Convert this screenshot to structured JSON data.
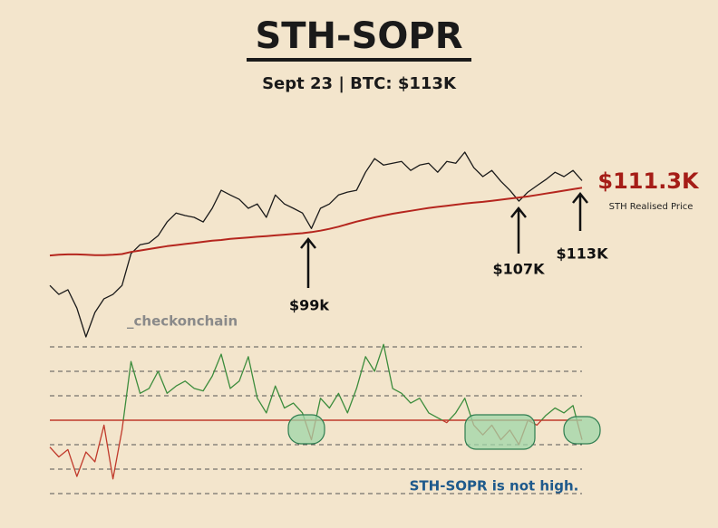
{
  "chart_data": [
    {
      "type": "line",
      "title": "STH-SOPR",
      "subtitle": "Sept 23 | BTC: $113K",
      "watermark": "_checkonchain",
      "ylim": [
        67.6,
        122.9
      ],
      "series": [
        {
          "color": "#1a1a1a",
          "values": [
            83.9,
            81.4,
            82.7,
            77.6,
            69.6,
            76.4,
            80.2,
            81.4,
            83.9,
            92.7,
            95.2,
            95.7,
            97.7,
            101.5,
            104.0,
            103.3,
            102.8,
            101.5,
            105.3,
            110.3,
            109.0,
            107.8,
            105.3,
            106.5,
            102.8,
            109.0,
            106.5,
            105.3,
            104.0,
            99.7,
            105.3,
            106.5,
            109.0,
            109.8,
            110.3,
            115.3,
            119.1,
            117.3,
            117.8,
            118.3,
            115.8,
            117.3,
            117.8,
            115.3,
            118.3,
            117.8,
            120.9,
            116.6,
            114.1,
            115.8,
            112.8,
            110.3,
            107.3,
            109.8,
            111.6,
            113.3,
            115.3,
            114.1,
            115.8,
            113.0
          ]
        },
        {
          "name": "STH Realised Price",
          "color": "#b5261e",
          "values": [
            92.2,
            92.4,
            92.5,
            92.5,
            92.4,
            92.3,
            92.3,
            92.4,
            92.6,
            93.2,
            93.6,
            94.0,
            94.4,
            94.8,
            95.1,
            95.4,
            95.7,
            96.0,
            96.3,
            96.5,
            96.8,
            97.0,
            97.2,
            97.4,
            97.6,
            97.8,
            98.0,
            98.2,
            98.4,
            98.7,
            99.1,
            99.6,
            100.2,
            100.9,
            101.6,
            102.2,
            102.8,
            103.3,
            103.8,
            104.2,
            104.6,
            105.0,
            105.4,
            105.7,
            106.0,
            106.3,
            106.6,
            106.9,
            107.1,
            107.4,
            107.7,
            108.0,
            108.3,
            108.6,
            109.0,
            109.4,
            109.8,
            110.2,
            110.6,
            111.0
          ]
        }
      ],
      "annotations": [
        "$99k",
        "$107K",
        "$113K",
        "$111.3K"
      ]
    },
    {
      "type": "line",
      "note": "STH-SOPR is not high.",
      "ylim": [
        0.965,
        1.035
      ],
      "yticks": [
        0.97,
        0.98,
        0.99,
        1,
        1.01,
        1.02,
        1.03
      ],
      "neutral_line": {
        "value": 1,
        "color": "#c0392b"
      },
      "series": [
        {
          "color": "#3c8c3c",
          "below_color": "#c0392b",
          "values": [
            0.989,
            0.985,
            0.988,
            0.977,
            0.987,
            0.983,
            0.998,
            0.976,
            0.996,
            1.024,
            1.011,
            1.013,
            1.02,
            1.011,
            1.014,
            1.016,
            1.013,
            1.012,
            1.018,
            1.027,
            1.013,
            1.016,
            1.026,
            1.009,
            1.003,
            1.014,
            1.005,
            1.007,
            1.003,
            0.992,
            1.009,
            1.005,
            1.011,
            1.003,
            1.013,
            1.026,
            1.02,
            1.031,
            1.013,
            1.011,
            1.007,
            1.009,
            1.003,
            1.001,
            0.999,
            1.003,
            1.009,
            0.998,
            0.994,
            0.998,
            0.992,
            0.996,
            0.99,
            1.0,
            0.998,
            1.002,
            1.005,
            1.003,
            1.006,
            0.992
          ]
        }
      ]
    }
  ]
}
